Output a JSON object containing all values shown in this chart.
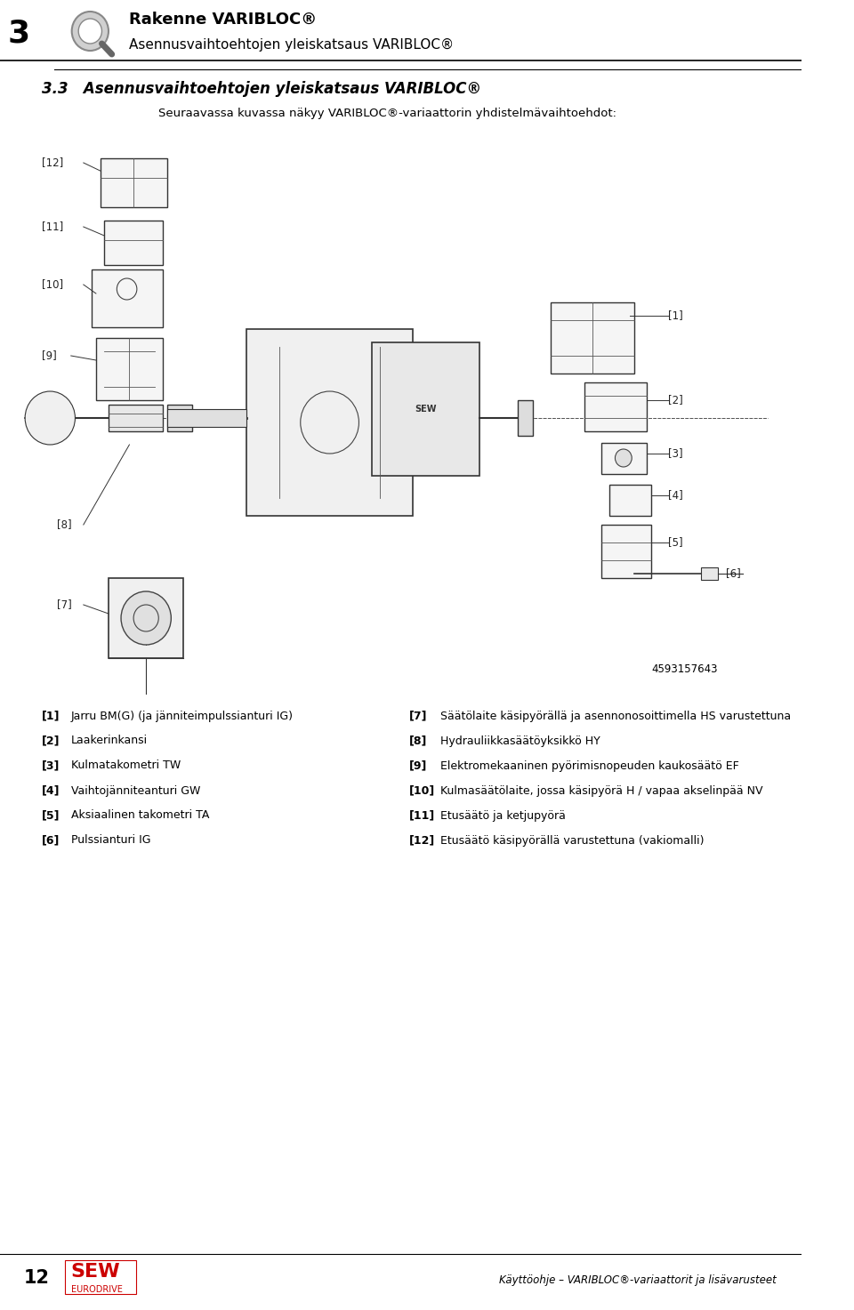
{
  "page_width": 9.6,
  "page_height": 14.73,
  "bg_color": "#ffffff",
  "header": {
    "chapter_num": "3",
    "title_bold": "Rakenne VARIBLOC®",
    "title_sub": "Asennusvaihtoehtojen yleiskatsaus VARIBLOC®",
    "icon_color": "#cccccc"
  },
  "section_title": "3.3   Asennusvaihtoehtojen yleiskatsaus VARIBLOC®",
  "section_subtitle": "Seuraavassa kuvassa näkyy VARIBLOC®-variaattorin yhdistelmävaihtoehdot:",
  "drawing_placeholder": true,
  "drawing_note": "4593157643",
  "labels_left": [
    {
      "num": "[1]",
      "text": "Jarru BM(G) (ja jänniteimpulssianturi IG)"
    },
    {
      "num": "[2]",
      "text": "Laakerinkansi"
    },
    {
      "num": "[3]",
      "text": "Kulmatakometri TW"
    },
    {
      "num": "[4]",
      "text": "Vaihtojänniteanturi GW"
    },
    {
      "num": "[5]",
      "text": "Aksiaalinen takometri TA"
    },
    {
      "num": "[6]",
      "text": "Pulssianturi IG"
    }
  ],
  "labels_right": [
    {
      "num": "[7]",
      "text": "Säätölaite käsipyörällä ja asennonosoittimella HS varustettuna"
    },
    {
      "num": "[8]",
      "text": "Hydrauliikkasäätöyksikkö HY"
    },
    {
      "num": "[9]",
      "text": "Elektromekaaninen pyörimisnopeuden kaukosäätö EF"
    },
    {
      "num": "[10]",
      "text": "Kulmasäätölaite, jossa käsipyörä H / vapaa akselinpää NV"
    },
    {
      "num": "[11]",
      "text": "Etusäätö ja ketjupyörä"
    },
    {
      "num": "[12]",
      "text": "Etusäätö käsipyörällä varustettuna (vakiomalli)"
    }
  ],
  "footer_left_num": "12",
  "footer_left_logo": "SEW\nEURODRIVE",
  "footer_right": "Käyttöohje – VARIBLOC®-variaattorit ja lisävarusteet",
  "separator_color": "#000000",
  "text_color": "#000000",
  "gray_color": "#888888"
}
